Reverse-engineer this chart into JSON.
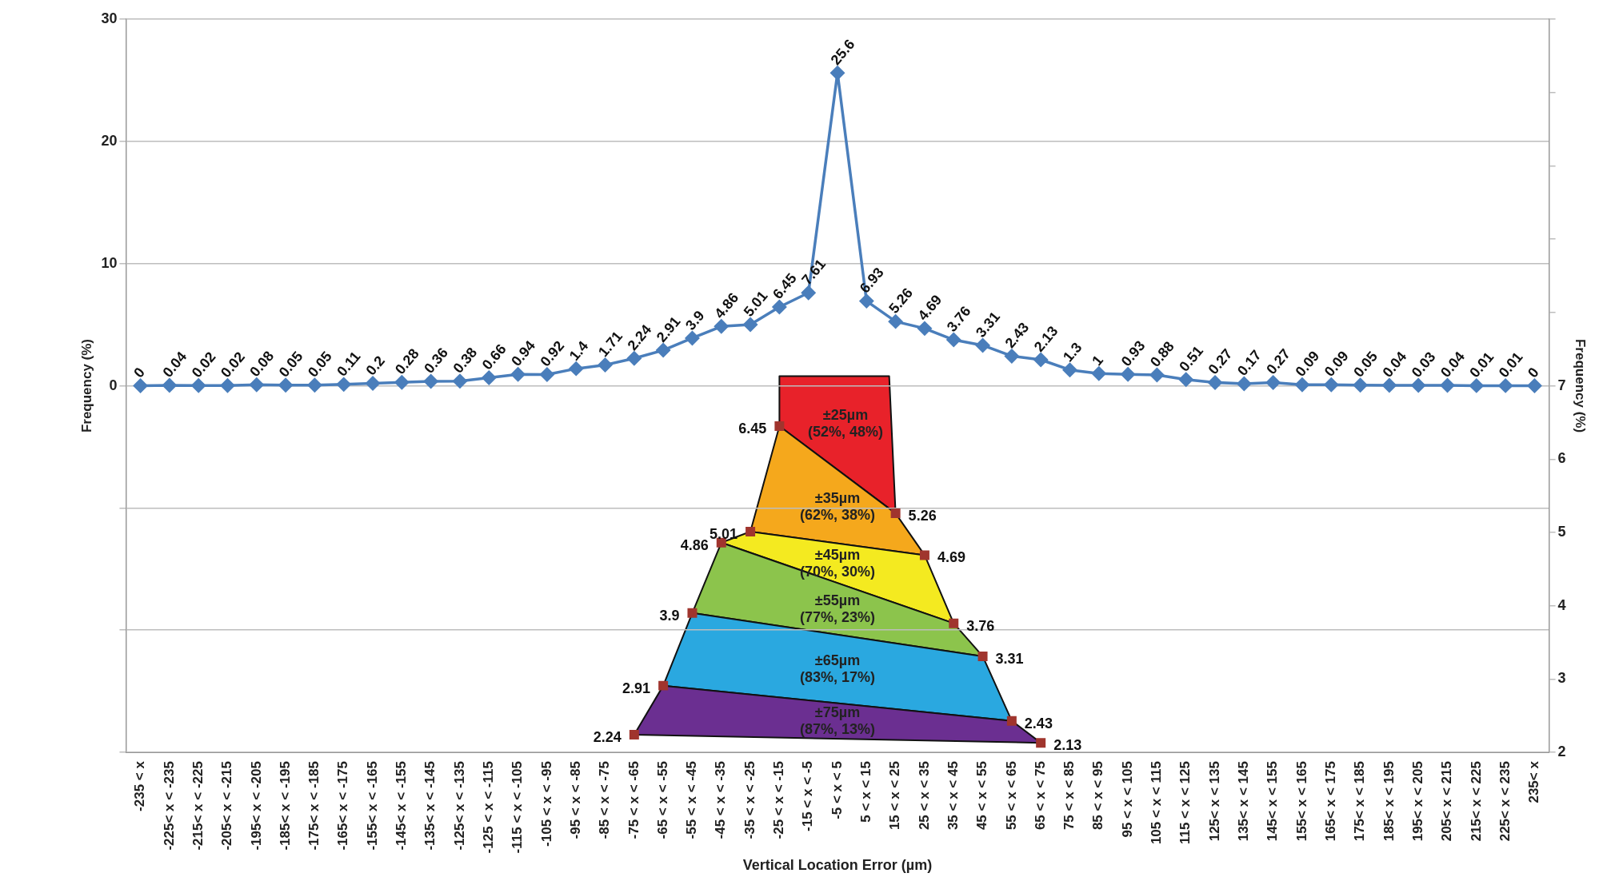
{
  "chart_data": {
    "type": "line",
    "categories": [
      "-235 < x",
      "-225< x < -235",
      "-215< x < -225",
      "-205< x < -215",
      "-195< x < -205",
      "-185< x < -195",
      "-175< x < -185",
      "-165< x < -175",
      "-155< x < -165",
      "-145< x < -155",
      "-135< x < -145",
      "-125< x < -135",
      "-125 < x < -115",
      "-115 < x < -105",
      "-105 < x < -95",
      "-95 < x < -85",
      "-85 < x < -75",
      "-75 < x < -65",
      "-65 < x < -55",
      "-55 < x < -45",
      "-45 < x < -35",
      "-35 < x < -25",
      "-25 < x < -15",
      "-15 < x < -5",
      "-5 < x < 5",
      "5 < x < 15",
      "15 < x < 25",
      "25 < x < 35",
      "35 < x < 45",
      "45 < x < 55",
      "55 < x < 65",
      "65 < x < 75",
      "75 < x < 85",
      "85 < x < 95",
      "95 < x < 105",
      "105 < x < 115",
      "115 < x < 125",
      "125< x < 135",
      "135< x < 145",
      "145< x < 155",
      "155< x < 165",
      "165< x < 175",
      "175< x < 185",
      "185< x < 195",
      "195< x < 205",
      "205< x < 215",
      "215< x < 225",
      "225< x < 235",
      "235< x"
    ],
    "series": [
      {
        "color": "#4a7ebb",
        "marker": "diamond",
        "values": [
          0,
          0.04,
          0.02,
          0.02,
          0.08,
          0.05,
          0.05,
          0.11,
          0.2,
          0.28,
          0.36,
          0.38,
          0.66,
          0.94,
          0.92,
          1.4,
          1.71,
          2.24,
          2.91,
          3.9,
          4.86,
          5.01,
          6.45,
          7.61,
          25.6,
          6.93,
          5.26,
          4.69,
          3.76,
          3.31,
          2.43,
          2.13,
          1.3,
          1,
          0.93,
          0.88,
          0.51,
          0.27,
          0.17,
          0.27,
          0.09,
          0.09,
          0.05,
          0.04,
          0.03,
          0.04,
          0.01,
          0.01,
          0
        ]
      },
      {
        "type": "scatter",
        "axis": "y2",
        "color": "#a0352e",
        "marker": "square",
        "values": [
          null,
          null,
          null,
          null,
          null,
          null,
          null,
          null,
          null,
          null,
          null,
          null,
          null,
          null,
          null,
          null,
          null,
          2.24,
          2.91,
          3.9,
          4.86,
          5.01,
          6.45,
          null,
          null,
          null,
          5.26,
          4.69,
          3.76,
          3.31,
          2.43,
          2.13,
          null,
          null,
          null,
          null,
          null,
          null,
          null,
          null,
          null,
          null,
          null,
          null,
          null,
          null,
          null,
          null,
          null
        ]
      }
    ],
    "xlabel": "Vertical Location Error (µm)",
    "ylabel": "Frequency (%)",
    "y2label": "Frequency (%)",
    "ylim": [
      -30,
      30
    ],
    "yticks": [
      {
        "value": -30,
        "label": null
      },
      {
        "value": -20,
        "label": null
      },
      {
        "value": -10,
        "label": null
      },
      0,
      10,
      20,
      30
    ],
    "y2lim": [
      2,
      12
    ],
    "y2ticks": [
      2,
      3,
      4,
      5,
      6,
      7,
      {
        "value": 8,
        "label": null
      },
      {
        "value": 9,
        "label": null
      },
      {
        "value": 10,
        "label": null
      },
      {
        "value": 11,
        "label": null
      },
      {
        "value": 12,
        "label": null
      }
    ],
    "grid": "y",
    "legend": false,
    "data_labels": true,
    "annotations": [
      "±25µm (52%, 48%)",
      "±35µm (62%, 38%)",
      "±45µm (70%, 30%)",
      "±55µm (77%, 23%)",
      "±65µm (83%, 17%)",
      "±75µm (87%, 13%)"
    ]
  }
}
